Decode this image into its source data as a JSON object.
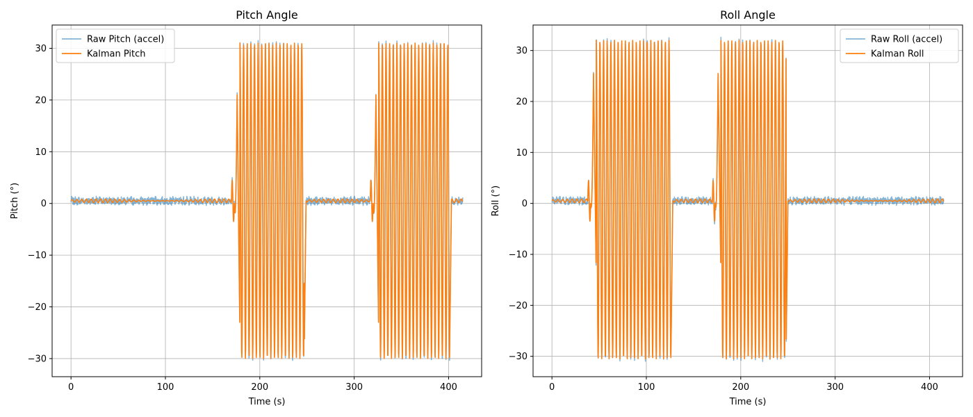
{
  "colors": {
    "raw": "#1f77b4",
    "kalman": "#ff7f0e",
    "grid": "#b0b0b0",
    "axis": "#000000"
  },
  "chart_data": [
    {
      "type": "line",
      "title": "Pitch Angle",
      "xlabel": "Time (s)",
      "ylabel": "Pitch (°)",
      "xlim": [
        -20,
        435
      ],
      "ylim": [
        -33.5,
        34.5
      ],
      "xticks": [
        0,
        100,
        200,
        300,
        400
      ],
      "xtick_labels": [
        "0",
        "100",
        "200",
        "300",
        "400"
      ],
      "yticks": [
        -30,
        -20,
        -10,
        0,
        10,
        20,
        30
      ],
      "ytick_labels": [
        "−30",
        "−20",
        "−10",
        "0",
        "10",
        "20",
        "30"
      ],
      "grid": true,
      "legend_position": "top-left",
      "series": [
        {
          "name": "Raw Pitch (accel)",
          "color_key": "raw",
          "alpha": 0.55
        },
        {
          "name": "Kalman Pitch",
          "color_key": "kalman",
          "alpha": 1
        }
      ],
      "time_range": [
        0,
        415
      ],
      "baseline": 0.5,
      "oscillation_bursts": [
        {
          "start": 170,
          "end": 249,
          "amplitude_max": 31,
          "amplitude_min": -30,
          "ramp_peak": 21,
          "ramp_trough": -27
        },
        {
          "start": 317,
          "end": 403,
          "amplitude_max": 31,
          "amplitude_min": -30,
          "ramp_peak": 21,
          "ramp_trough": -27
        }
      ]
    },
    {
      "type": "line",
      "title": "Roll Angle",
      "xlabel": "Time (s)",
      "ylabel": "Roll (°)",
      "xlim": [
        -20,
        435
      ],
      "ylim": [
        -34,
        35
      ],
      "xticks": [
        0,
        100,
        200,
        300,
        400
      ],
      "xtick_labels": [
        "0",
        "100",
        "200",
        "300",
        "400"
      ],
      "yticks": [
        -30,
        -20,
        -10,
        0,
        10,
        20,
        30
      ],
      "ytick_labels": [
        "−30",
        "−20",
        "−10",
        "0",
        "10",
        "20",
        "30"
      ],
      "grid": true,
      "legend_position": "top-right",
      "series": [
        {
          "name": "Raw Roll (accel)",
          "color_key": "raw",
          "alpha": 0.55
        },
        {
          "name": "Kalman Roll",
          "color_key": "kalman",
          "alpha": 1
        }
      ],
      "time_range": [
        0,
        415
      ],
      "baseline": 0.5,
      "oscillation_bursts": [
        {
          "start": 38,
          "end": 128,
          "amplitude_max": 32,
          "amplitude_min": -30.5,
          "ramp_peak": 25.5,
          "ramp_trough": -15
        },
        {
          "start": 170,
          "end": 250,
          "amplitude_max": 32,
          "amplitude_min": -30.5,
          "ramp_peak": 25.5,
          "ramp_trough": -15
        }
      ]
    }
  ]
}
